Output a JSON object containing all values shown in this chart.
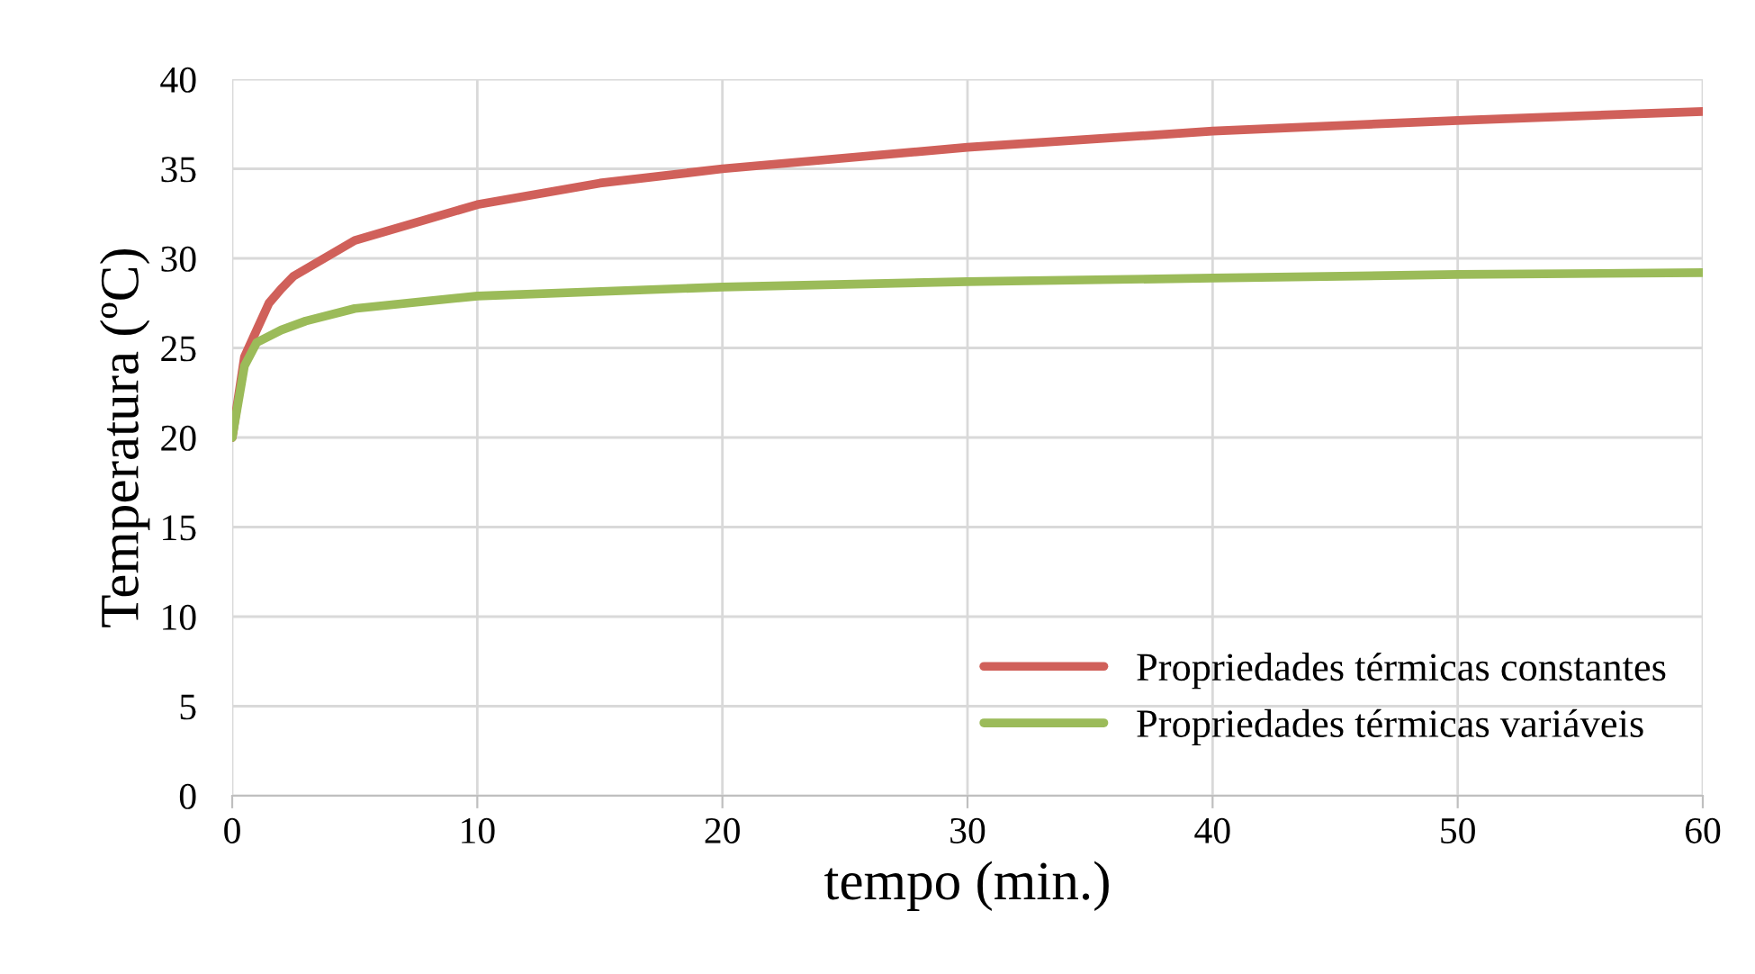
{
  "chart_data": {
    "type": "line",
    "xlabel": "tempo (min.)",
    "ylabel": "Temperatura (ºC)",
    "series": [
      {
        "name": "Propriedades térmicas constantes",
        "color": "#d0605a",
        "x": [
          0,
          0.5,
          1,
          1.5,
          2,
          2.5,
          5,
          10,
          15,
          20,
          30,
          40,
          50,
          60
        ],
        "values": [
          20,
          24.5,
          26,
          27.5,
          28.3,
          29,
          31,
          33,
          34.2,
          35,
          36.2,
          37.1,
          37.7,
          38.2
        ]
      },
      {
        "name": "Propriedades térmicas variáveis",
        "color": "#9bbb59",
        "x": [
          0,
          0.5,
          1,
          2,
          3,
          5,
          10,
          20,
          30,
          40,
          50,
          60
        ],
        "values": [
          20,
          24,
          25.3,
          26,
          26.5,
          27.2,
          27.9,
          28.4,
          28.7,
          28.9,
          29.1,
          29.2
        ]
      }
    ],
    "xlim": [
      0,
      60
    ],
    "xticks": [
      0,
      10,
      20,
      30,
      40,
      50,
      60
    ],
    "ylim": [
      0,
      40
    ],
    "yticks": [
      0,
      5,
      10,
      15,
      20,
      25,
      30,
      35,
      40
    ],
    "grid": true,
    "legend": "bottom right",
    "marker": "none",
    "line_style": "solid"
  }
}
